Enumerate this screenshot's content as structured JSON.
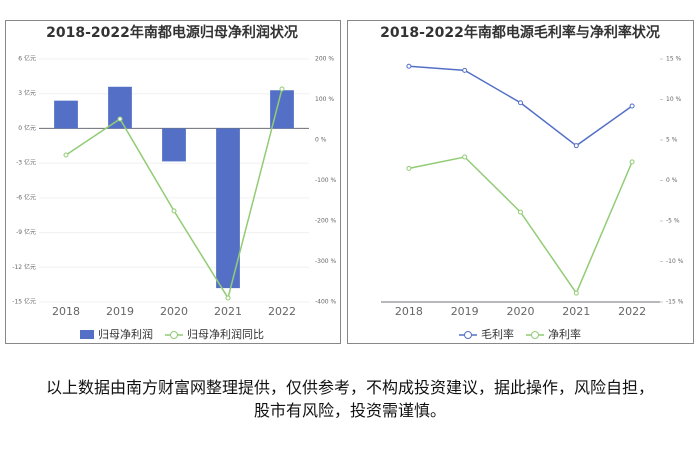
{
  "chart_data": [
    {
      "type": "bar",
      "title": "2018-2022年南都电源归母净利润状况",
      "categories": [
        "2018",
        "2019",
        "2020",
        "2021",
        "2022"
      ],
      "series": [
        {
          "name": "归母净利润",
          "type": "bar",
          "color": "#5470c6",
          "values": [
            2.4,
            3.6,
            -2.85,
            -13.8,
            3.3
          ]
        },
        {
          "name": "归母净利润同比",
          "type": "line",
          "axis": "y2",
          "color": "#91cc75",
          "values": [
            -37,
            52,
            -175,
            -390,
            126
          ]
        }
      ],
      "ylim": [
        -15,
        6
      ],
      "yticks": [
        {
          "value": 6,
          "label": "6 亿元"
        },
        {
          "value": 3,
          "label": "3 亿元"
        },
        {
          "value": 0,
          "label": "0 亿元"
        },
        {
          "value": -3,
          "label": "-3 亿元"
        },
        {
          "value": -6,
          "label": "-6 亿元"
        },
        {
          "value": -9,
          "label": "-9 亿元"
        },
        {
          "value": -12,
          "label": "-12 亿元"
        },
        {
          "value": -15,
          "label": "-15 亿元"
        }
      ],
      "y2lim": [
        -400,
        200
      ],
      "y2ticks": [
        {
          "value": 200,
          "label": "200 %"
        },
        {
          "value": 100,
          "label": "100 %"
        },
        {
          "value": 0,
          "label": "0 %"
        },
        {
          "value": -100,
          "label": "-100 %"
        },
        {
          "value": -200,
          "label": "-200 %"
        },
        {
          "value": -300,
          "label": "-300 %"
        },
        {
          "value": -400,
          "label": "-400 %"
        }
      ]
    },
    {
      "type": "line",
      "title": "2018-2022年南都电源毛利率与净利率状况",
      "categories": [
        "2018",
        "2019",
        "2020",
        "2021",
        "2022"
      ],
      "series": [
        {
          "name": "毛利率",
          "type": "line",
          "axis": "y2",
          "color": "#5470c6",
          "values": [
            14.1,
            13.6,
            9.6,
            4.3,
            9.2
          ]
        },
        {
          "name": "净利率",
          "type": "line",
          "axis": "y2",
          "color": "#91cc75",
          "values": [
            1.5,
            2.9,
            -3.9,
            -13.9,
            2.3
          ]
        }
      ],
      "y2lim": [
        -15,
        15
      ],
      "y2ticks": [
        {
          "value": 15,
          "label": "15 %"
        },
        {
          "value": 10,
          "label": "10 %"
        },
        {
          "value": 5,
          "label": "5 %"
        },
        {
          "value": 0,
          "label": "0 %"
        },
        {
          "value": -5,
          "label": "-5 %"
        },
        {
          "value": -10,
          "label": "-10 %"
        },
        {
          "value": -15,
          "label": "-15 %"
        }
      ]
    }
  ],
  "caption": "以上数据由南方财富网整理提供，仅供参考，不构成投资建议，据此操作，风险自担，股市有风险，投资需谨慎。"
}
